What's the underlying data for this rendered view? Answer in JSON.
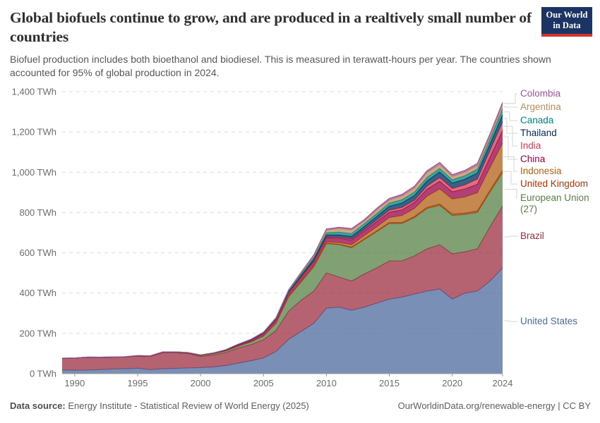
{
  "header": {
    "title": "Global biofuels continue to grow, and are produced in a realtively small number of countries",
    "subtitle": "Biofuel production includes both bioethanol and biodiesel. This is measured in terawatt-hours per year. The countries shown accounted for 95% of global production in 2024.",
    "logo": {
      "line1": "Our World",
      "line2": "in Data"
    }
  },
  "footer": {
    "source_label": "Data source:",
    "source_text": " Energy Institute - Statistical Review of World Energy (2025)",
    "credit": "OurWorldinData.org/renewable-energy | CC BY"
  },
  "colors": {
    "logo_bg": "#1b3463",
    "logo_bar": "#d3352b",
    "grid": "#dcdcdc",
    "axis": "#9a9a9a",
    "tick_text": "#6b6b6b",
    "connector": "#d4d4d4"
  },
  "chart_data": {
    "type": "area",
    "stacked": true,
    "title": "Global biofuels continue to grow, and are produced in a realtively small number of countries",
    "unit": "TWh",
    "ylabel": "",
    "xlabel": "",
    "ylim": [
      0,
      1400
    ],
    "ytick_step": 200,
    "grid": true,
    "legend_position": "right",
    "x": [
      1989,
      1990,
      1991,
      1992,
      1993,
      1994,
      1995,
      1996,
      1997,
      1998,
      1999,
      2000,
      2001,
      2002,
      2003,
      2004,
      2005,
      2006,
      2007,
      2008,
      2009,
      2010,
      2011,
      2012,
      2013,
      2014,
      2015,
      2016,
      2017,
      2018,
      2019,
      2020,
      2021,
      2022,
      2023,
      2024
    ],
    "xticks": [
      1990,
      1995,
      2000,
      2005,
      2010,
      2015,
      2020,
      2024
    ],
    "series_bottom_to_top": [
      {
        "name": "United States",
        "color": "#4C6A9C",
        "values": [
          18,
          17,
          18,
          20,
          23,
          25,
          27,
          20,
          24,
          26,
          28,
          30,
          33,
          40,
          52,
          64,
          78,
          110,
          170,
          210,
          250,
          325,
          330,
          315,
          330,
          350,
          370,
          380,
          395,
          410,
          420,
          370,
          400,
          410,
          460,
          525
        ]
      },
      {
        "name": "Brazil",
        "color": "#9C2E41",
        "values": [
          58,
          60,
          63,
          60,
          58,
          57,
          60,
          65,
          80,
          78,
          72,
          55,
          60,
          65,
          75,
          80,
          90,
          105,
          140,
          155,
          160,
          175,
          150,
          145,
          165,
          175,
          190,
          180,
          190,
          210,
          220,
          225,
          205,
          210,
          270,
          308
        ]
      },
      {
        "name": "European Union (27)",
        "color": "#578145",
        "values": [
          0,
          0,
          0.5,
          1,
          1,
          1.5,
          2,
          2.5,
          3,
          3.5,
          4,
          5,
          6,
          8,
          10,
          13,
          18,
          35,
          70,
          90,
          120,
          145,
          160,
          165,
          170,
          180,
          186,
          185,
          190,
          200,
          195,
          190,
          185,
          180,
          172,
          165
        ]
      },
      {
        "name": "United Kingdom",
        "color": "#B13507",
        "values": [
          0,
          0,
          0,
          0,
          0,
          0,
          0,
          0,
          0,
          0,
          0,
          0,
          0,
          0,
          0,
          0,
          0.5,
          1,
          2,
          2.5,
          3,
          3,
          3,
          3.5,
          3.5,
          4,
          4,
          5,
          5.5,
          6,
          7,
          7,
          7,
          8,
          9,
          11
        ]
      },
      {
        "name": "Indonesia",
        "color": "#B16214",
        "values": [
          0,
          0,
          0,
          0,
          0,
          0,
          0,
          0,
          0,
          0,
          0,
          0,
          0,
          0,
          0,
          0,
          0,
          1,
          2,
          3,
          4,
          6,
          8,
          12,
          16,
          20,
          25,
          35,
          40,
          55,
          75,
          75,
          80,
          90,
          112,
          135
        ]
      },
      {
        "name": "China",
        "color": "#970046",
        "values": [
          0,
          0,
          0,
          0,
          0,
          0,
          0,
          0,
          0,
          0,
          0,
          1,
          2,
          3,
          6,
          8,
          12,
          15,
          16,
          18,
          19,
          20,
          21,
          22,
          23,
          25,
          26,
          28,
          30,
          35,
          38,
          36,
          40,
          42,
          52,
          63
        ]
      },
      {
        "name": "India",
        "color": "#D73C50",
        "values": [
          0,
          0,
          0,
          0,
          0,
          0,
          0,
          0,
          0,
          0,
          0,
          0,
          0,
          1,
          1.5,
          1.5,
          2,
          2.5,
          2,
          3,
          3.5,
          4,
          4.5,
          5,
          6,
          8,
          10,
          12,
          10,
          15,
          18,
          16,
          20,
          26,
          33,
          42
        ]
      },
      {
        "name": "Thailand",
        "color": "#00295B",
        "values": [
          0,
          0,
          0,
          0,
          0,
          0,
          0,
          0,
          0,
          0,
          0,
          0,
          0,
          0,
          0,
          1,
          2,
          3,
          4,
          6,
          8,
          10,
          12,
          14,
          16,
          18,
          20,
          22,
          24,
          26,
          28,
          27,
          28,
          30,
          32,
          35
        ]
      },
      {
        "name": "Canada",
        "color": "#00847E",
        "values": [
          1,
          1,
          1,
          1,
          1,
          1,
          1,
          1,
          1,
          1,
          1,
          2,
          2,
          2,
          2,
          2.5,
          3,
          4,
          6,
          8,
          10,
          12,
          14,
          14,
          15,
          15,
          16,
          17,
          17,
          18,
          18,
          17,
          18,
          20,
          25,
          31
        ]
      },
      {
        "name": "Argentina",
        "color": "#BC8E5A",
        "values": [
          0,
          0,
          0,
          0,
          0,
          0,
          0,
          0,
          0,
          0,
          0,
          0,
          0,
          0,
          0,
          0,
          0,
          0,
          2,
          5,
          8,
          13,
          18,
          18,
          13,
          18,
          15,
          18,
          21,
          24,
          21,
          16,
          17,
          18,
          16,
          21
        ]
      },
      {
        "name": "Colombia",
        "color": "#A2559C",
        "values": [
          0,
          0,
          0,
          0,
          0,
          0,
          0,
          0,
          0,
          0,
          0,
          0,
          0,
          0,
          0,
          0,
          1,
          2,
          3,
          4,
          5,
          6,
          6.5,
          7,
          7,
          8,
          8,
          8,
          8.5,
          9,
          9,
          9,
          9.5,
          10,
          10,
          11
        ]
      }
    ]
  }
}
